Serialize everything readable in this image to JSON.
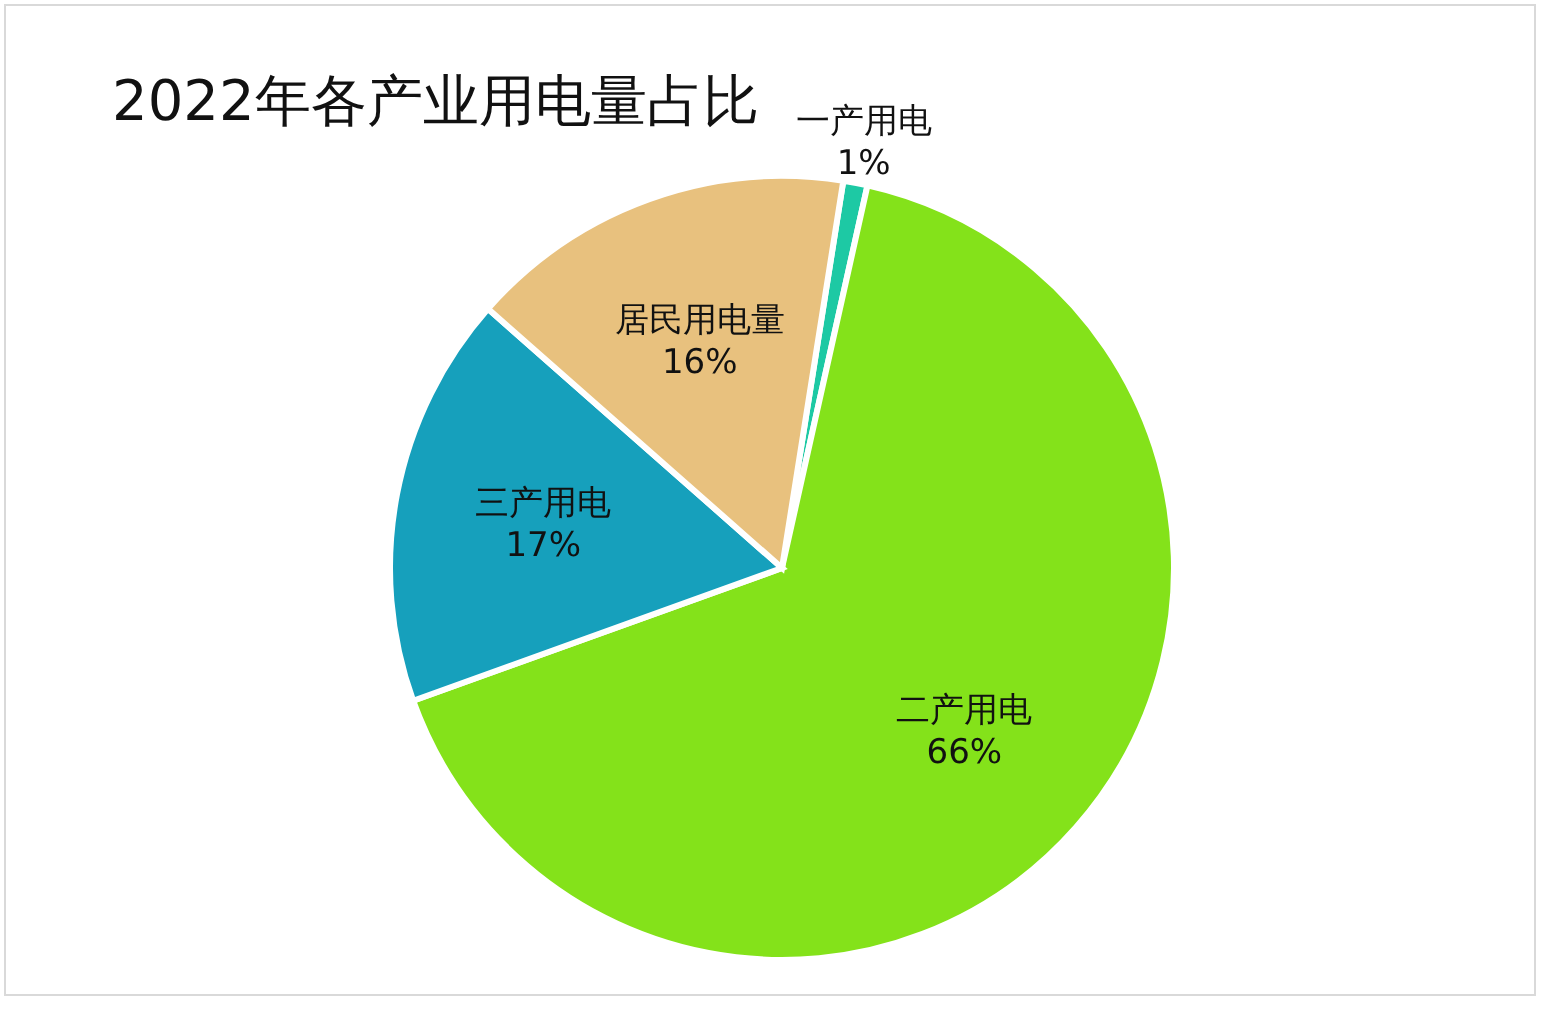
{
  "chart_data": {
    "type": "pie",
    "title": "2022年各产业用电量占比",
    "categories": [
      "一产用电",
      "二产用电",
      "三产用电",
      "居民用电量"
    ],
    "values": [
      1,
      66,
      17,
      16
    ],
    "colors": [
      "#1dc9a4",
      "#84e21a",
      "#16a0bc",
      "#e8c17e"
    ],
    "value_labels": [
      "1%",
      "66%",
      "17%",
      "16%"
    ],
    "legend": false
  }
}
